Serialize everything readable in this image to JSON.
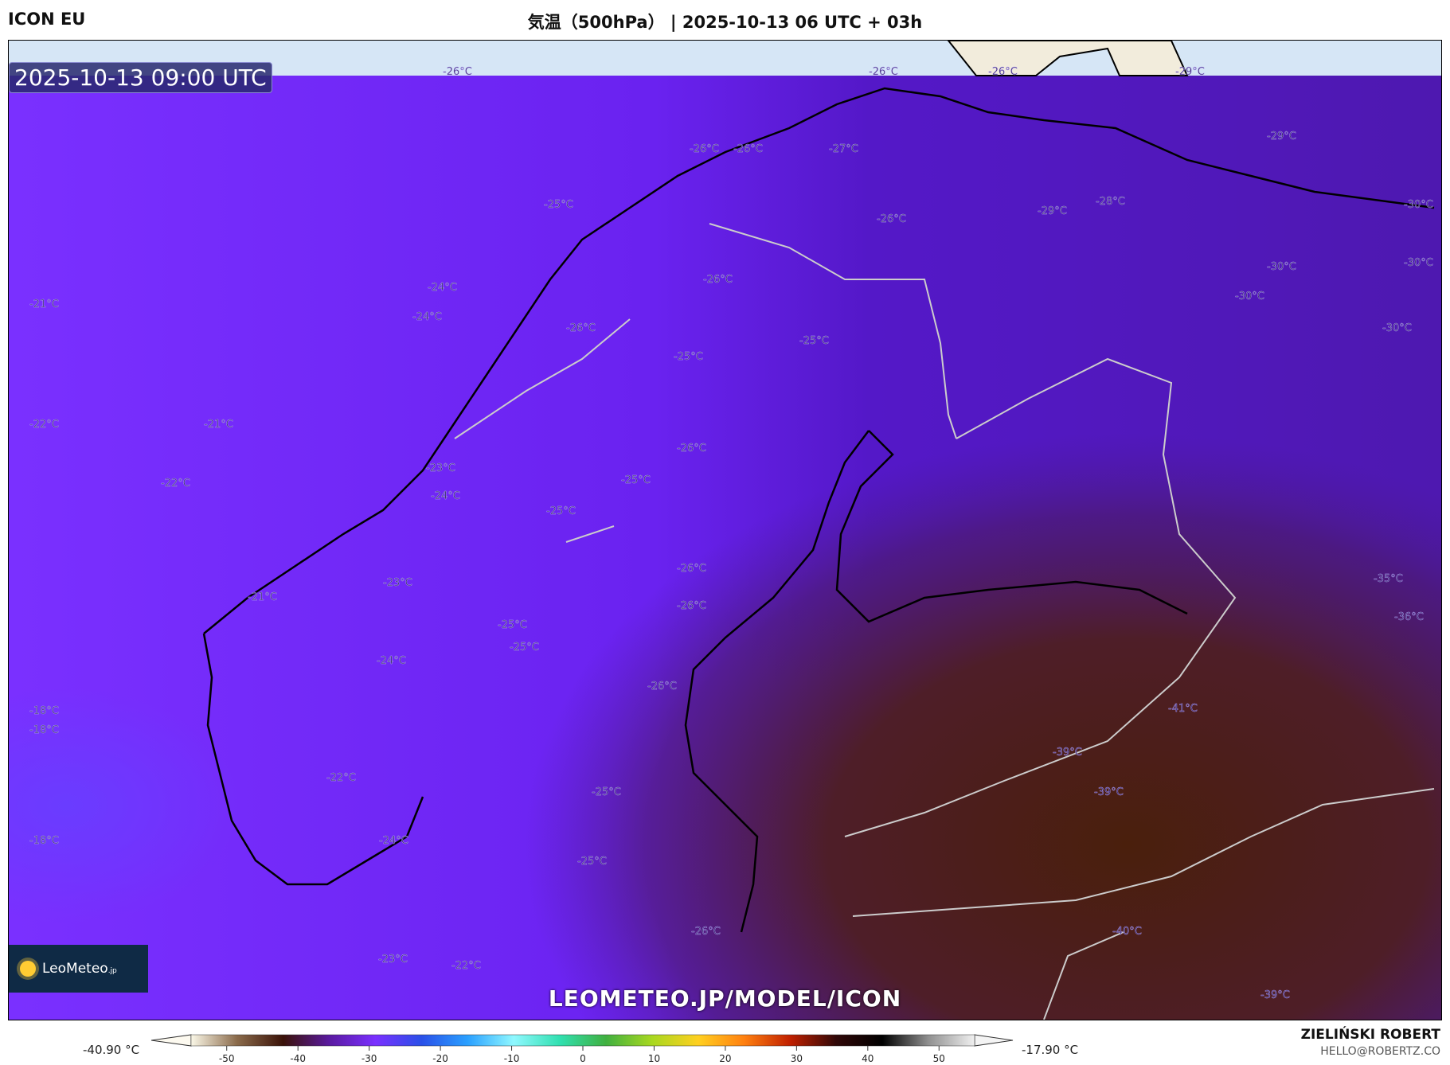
{
  "header": {
    "model": "ICON EU",
    "title": "気温（500hPa） | 2025-10-13 06 UTC + 03h"
  },
  "map": {
    "valid_time": "2025-10-13 09:00 UTC",
    "logo_text": "LeoMeteo",
    "logo_suffix": ".jp",
    "url": "LEOMETEO.JP/MODEL/ICON",
    "temperature_labels": [
      "-26°C",
      "-26°C",
      "-26°C",
      "-29°C",
      "-26°C",
      "-26°C",
      "-27°C",
      "-25°C",
      "-26°C",
      "-29°C",
      "-28°C",
      "-29°C",
      "-30°C",
      "-30°C",
      "-30°C",
      "-30°C",
      "-30°C",
      "-21°C",
      "-24°C",
      "-24°C",
      "-26°C",
      "-26°C",
      "-25°C",
      "-25°C",
      "-22°C",
      "-21°C",
      "-22°C",
      "-26°C",
      "-25°C",
      "-23°C",
      "-24°C",
      "-25°C",
      "-26°C",
      "-26°C",
      "-23°C",
      "-21°C",
      "-25°C",
      "-25°C",
      "-24°C",
      "-26°C",
      "-18°C",
      "-18°C",
      "-22°C",
      "-41°C",
      "-39°C",
      "-39°C",
      "-25°C",
      "-35°C",
      "-36°C",
      "-18°C",
      "-24°C",
      "-25°C",
      "-26°C",
      "-40°C",
      "-23°C",
      "-22°C",
      "-39°C"
    ],
    "colors": {
      "west": "#7a30ff",
      "center": "#5a18d8",
      "east_cold": "#4a1f0c",
      "arctic_strip": "#d6e6f6",
      "land_ice": "#f2ecdc"
    }
  },
  "colorbar": {
    "min_label": "-40.90 °C",
    "max_label": "-17.90 °C",
    "ticks": [
      "-50",
      "-40",
      "-30",
      "-20",
      "-10",
      "0",
      "10",
      "20",
      "30",
      "40",
      "50"
    ],
    "range": [
      -55,
      55
    ],
    "stops": [
      "#fbf8e8",
      "#8a6a4a",
      "#3a1208",
      "#5a1aa0",
      "#7a30ff",
      "#2a50e8",
      "#2aa0ff",
      "#8ff8ff",
      "#30e0b0",
      "#40b040",
      "#a8d820",
      "#ffd020",
      "#ff8010",
      "#c02000",
      "#300808",
      "#000000",
      "#909090",
      "#f0f0f0"
    ]
  },
  "author": {
    "name": "ZIELIŃSKI ROBERT",
    "email": "HELLO@ROBERTZ.CO"
  }
}
